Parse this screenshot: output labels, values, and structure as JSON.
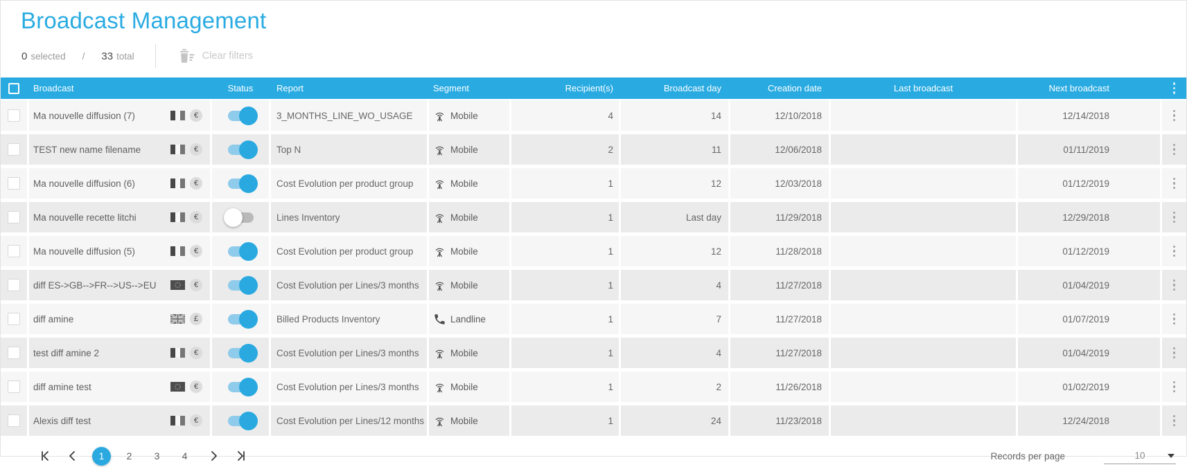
{
  "page_title": "Broadcast Management",
  "toolbar": {
    "selected_count": "0",
    "selected_label": "selected",
    "separator": "/",
    "total_count": "33",
    "total_label": "total",
    "clear_filters_label": "Clear filters"
  },
  "table": {
    "headers": {
      "broadcast": "Broadcast",
      "status": "Status",
      "report": "Report",
      "segment": "Segment",
      "recipients": "Recipient(s)",
      "broadcast_day": "Broadcast day",
      "creation_date": "Creation date",
      "last_broadcast": "Last broadcast",
      "next_broadcast": "Next broadcast"
    },
    "rows": [
      {
        "name": "Ma nouvelle diffusion (7)",
        "flag": "fr",
        "currency": "€",
        "status": "on",
        "report": "3_MONTHS_LINE_WO_USAGE",
        "segment": "Mobile",
        "segment_icon": "mobile",
        "recipients": "4",
        "broadcast_day": "14",
        "creation_date": "12/10/2018",
        "last_broadcast": "",
        "next_broadcast": "12/14/2018"
      },
      {
        "name": "TEST new name filename",
        "flag": "fr",
        "currency": "€",
        "status": "on",
        "report": "Top N",
        "segment": "Mobile",
        "segment_icon": "mobile",
        "recipients": "2",
        "broadcast_day": "11",
        "creation_date": "12/06/2018",
        "last_broadcast": "",
        "next_broadcast": "01/11/2019"
      },
      {
        "name": "Ma nouvelle diffusion (6)",
        "flag": "fr",
        "currency": "€",
        "status": "on",
        "report": "Cost Evolution per product group",
        "segment": "Mobile",
        "segment_icon": "mobile",
        "recipients": "1",
        "broadcast_day": "12",
        "creation_date": "12/03/2018",
        "last_broadcast": "",
        "next_broadcast": "01/12/2019"
      },
      {
        "name": "Ma nouvelle recette litchi",
        "flag": "fr",
        "currency": "€",
        "status": "off",
        "report": "Lines Inventory",
        "segment": "Mobile",
        "segment_icon": "mobile",
        "recipients": "1",
        "broadcast_day": "Last day",
        "creation_date": "11/29/2018",
        "last_broadcast": "",
        "next_broadcast": "12/29/2018"
      },
      {
        "name": "Ma nouvelle diffusion (5)",
        "flag": "fr",
        "currency": "€",
        "status": "on",
        "report": "Cost Evolution per product group",
        "segment": "Mobile",
        "segment_icon": "mobile",
        "recipients": "1",
        "broadcast_day": "12",
        "creation_date": "11/28/2018",
        "last_broadcast": "",
        "next_broadcast": "01/12/2019"
      },
      {
        "name": "diff ES->GB-->FR-->US-->EU",
        "flag": "eu",
        "currency": "€",
        "status": "on",
        "report": "Cost Evolution per Lines/3 months",
        "segment": "Mobile",
        "segment_icon": "mobile",
        "recipients": "1",
        "broadcast_day": "4",
        "creation_date": "11/27/2018",
        "last_broadcast": "",
        "next_broadcast": "01/04/2019"
      },
      {
        "name": "diff amine",
        "flag": "gb",
        "currency": "£",
        "status": "on",
        "report": "Billed Products Inventory",
        "segment": "Landline",
        "segment_icon": "landline",
        "recipients": "1",
        "broadcast_day": "7",
        "creation_date": "11/27/2018",
        "last_broadcast": "",
        "next_broadcast": "01/07/2019"
      },
      {
        "name": "test diff amine 2",
        "flag": "fr",
        "currency": "€",
        "status": "on",
        "report": "Cost Evolution per Lines/3 months",
        "segment": "Mobile",
        "segment_icon": "mobile",
        "recipients": "1",
        "broadcast_day": "4",
        "creation_date": "11/27/2018",
        "last_broadcast": "",
        "next_broadcast": "01/04/2019"
      },
      {
        "name": "diff amine test",
        "flag": "eu",
        "currency": "€",
        "status": "on",
        "report": "Cost Evolution per Lines/3 months",
        "segment": "Mobile",
        "segment_icon": "mobile",
        "recipients": "1",
        "broadcast_day": "2",
        "creation_date": "11/26/2018",
        "last_broadcast": "",
        "next_broadcast": "01/02/2019"
      },
      {
        "name": "Alexis diff test",
        "flag": "fr",
        "currency": "€",
        "status": "on",
        "report": "Cost Evolution per Lines/12 months",
        "segment": "Mobile",
        "segment_icon": "mobile",
        "recipients": "1",
        "broadcast_day": "24",
        "creation_date": "11/23/2018",
        "last_broadcast": "",
        "next_broadcast": "12/24/2018"
      }
    ]
  },
  "pagination": {
    "pages": [
      "1",
      "2",
      "3",
      "4"
    ],
    "active_page": "1"
  },
  "records_per_page": {
    "label": "Records per page",
    "value": "10"
  },
  "colors": {
    "accent_blue": "#29abe2",
    "toggle_on": "#29a9e0",
    "toggle_on_track": "#8fcbea",
    "toggle_off_track": "#b9b9b9",
    "row_light": "#f6f6f6",
    "row_dark": "#ebebeb"
  }
}
